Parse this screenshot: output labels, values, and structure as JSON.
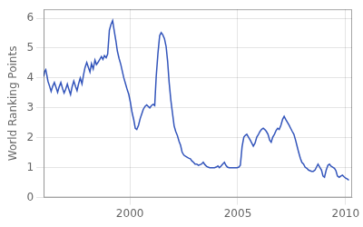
{
  "chart_data": {
    "type": "line",
    "ylabel": "World Ranking Points",
    "color": "#3355bb",
    "xlim": [
      1996.0,
      2010.3
    ],
    "ylim": [
      0,
      6.3
    ],
    "xticks": [
      2000,
      2005,
      2010
    ],
    "yticks": [
      0,
      1,
      2,
      3,
      4,
      5,
      6
    ],
    "grid": true,
    "x": [
      1996.0,
      1996.05,
      1996.1,
      1996.15,
      1996.2,
      1996.28,
      1996.35,
      1996.42,
      1996.5,
      1996.58,
      1996.65,
      1996.72,
      1996.8,
      1996.88,
      1996.95,
      1997.02,
      1997.1,
      1997.18,
      1997.25,
      1997.32,
      1997.4,
      1997.48,
      1997.55,
      1997.62,
      1997.7,
      1997.78,
      1997.85,
      1997.92,
      1998.0,
      1998.08,
      1998.15,
      1998.22,
      1998.3,
      1998.38,
      1998.45,
      1998.52,
      1998.6,
      1998.68,
      1998.75,
      1998.82,
      1998.9,
      1998.97,
      1999.05,
      1999.12,
      1999.2,
      1999.28,
      1999.35,
      1999.42,
      1999.5,
      1999.58,
      1999.65,
      1999.72,
      1999.8,
      1999.88,
      1999.95,
      2000.02,
      2000.1,
      2000.18,
      2000.25,
      2000.32,
      2000.4,
      2000.48,
      2000.55,
      2000.62,
      2000.7,
      2000.78,
      2000.85,
      2000.92,
      2001.0,
      2001.08,
      2001.15,
      2001.22,
      2001.3,
      2001.38,
      2001.45,
      2001.52,
      2001.6,
      2001.68,
      2001.75,
      2001.82,
      2001.9,
      2001.97,
      2002.05,
      2002.12,
      2002.2,
      2002.28,
      2002.35,
      2002.42,
      2002.5,
      2002.58,
      2002.65,
      2002.72,
      2002.8,
      2002.88,
      2002.95,
      2003.02,
      2003.1,
      2003.18,
      2003.25,
      2003.32,
      2003.4,
      2003.48,
      2003.55,
      2003.62,
      2003.7,
      2003.78,
      2003.85,
      2003.92,
      2004.0,
      2004.08,
      2004.15,
      2004.22,
      2004.3,
      2004.38,
      2004.45,
      2004.52,
      2004.6,
      2004.68,
      2004.75,
      2004.82,
      2004.9,
      2004.97,
      2005.05,
      2005.12,
      2005.2,
      2005.28,
      2005.35,
      2005.42,
      2005.5,
      2005.58,
      2005.65,
      2005.72,
      2005.8,
      2005.88,
      2005.95,
      2006.02,
      2006.1,
      2006.18,
      2006.25,
      2006.32,
      2006.4,
      2006.48,
      2006.55,
      2006.62,
      2006.7,
      2006.78,
      2006.85,
      2006.92,
      2007.0,
      2007.08,
      2007.15,
      2007.22,
      2007.3,
      2007.38,
      2007.45,
      2007.52,
      2007.6,
      2007.68,
      2007.75,
      2007.82,
      2007.9,
      2007.97,
      2008.05,
      2008.12,
      2008.2,
      2008.28,
      2008.35,
      2008.42,
      2008.5,
      2008.58,
      2008.65,
      2008.72,
      2008.8,
      2008.88,
      2008.95,
      2009.02,
      2009.1,
      2009.18,
      2009.25,
      2009.32,
      2009.4,
      2009.48,
      2009.55,
      2009.62,
      2009.7,
      2009.78,
      2009.85,
      2009.92,
      2010.0,
      2010.08,
      2010.15
    ],
    "values": [
      4.05,
      4.22,
      4.28,
      4.1,
      3.9,
      3.72,
      3.55,
      3.72,
      3.85,
      3.68,
      3.52,
      3.7,
      3.85,
      3.65,
      3.5,
      3.62,
      3.8,
      3.6,
      3.45,
      3.7,
      3.9,
      3.72,
      3.58,
      3.8,
      4.0,
      3.8,
      4.1,
      4.35,
      4.52,
      4.35,
      4.2,
      4.48,
      4.3,
      4.6,
      4.45,
      4.52,
      4.62,
      4.72,
      4.62,
      4.75,
      4.68,
      4.8,
      5.6,
      5.78,
      5.92,
      5.55,
      5.25,
      4.9,
      4.65,
      4.45,
      4.22,
      4.0,
      3.8,
      3.6,
      3.45,
      3.2,
      2.85,
      2.6,
      2.32,
      2.28,
      2.42,
      2.65,
      2.8,
      2.95,
      3.05,
      3.1,
      3.05,
      3.0,
      3.08,
      3.12,
      3.08,
      4.05,
      4.82,
      5.42,
      5.52,
      5.45,
      5.32,
      5.05,
      4.55,
      3.85,
      3.25,
      2.85,
      2.4,
      2.22,
      2.08,
      1.88,
      1.75,
      1.52,
      1.42,
      1.38,
      1.35,
      1.32,
      1.3,
      1.22,
      1.18,
      1.12,
      1.12,
      1.08,
      1.1,
      1.12,
      1.18,
      1.1,
      1.05,
      1.02,
      1.0,
      1.0,
      1.0,
      1.0,
      1.02,
      1.06,
      1.0,
      1.05,
      1.12,
      1.18,
      1.08,
      1.02,
      1.0,
      1.0,
      1.0,
      1.0,
      1.0,
      1.0,
      1.02,
      1.08,
      1.7,
      2.02,
      2.08,
      2.12,
      2.02,
      1.92,
      1.82,
      1.72,
      1.82,
      2.02,
      2.1,
      2.2,
      2.28,
      2.32,
      2.28,
      2.22,
      2.12,
      1.92,
      1.85,
      2.02,
      2.12,
      2.25,
      2.32,
      2.28,
      2.42,
      2.62,
      2.72,
      2.62,
      2.52,
      2.42,
      2.32,
      2.22,
      2.12,
      1.92,
      1.72,
      1.52,
      1.32,
      1.18,
      1.12,
      1.02,
      0.98,
      0.92,
      0.9,
      0.88,
      0.88,
      0.92,
      1.02,
      1.12,
      1.02,
      0.92,
      0.72,
      0.68,
      0.92,
      1.08,
      1.12,
      1.05,
      1.02,
      0.98,
      0.9,
      0.72,
      0.68,
      0.72,
      0.75,
      0.7,
      0.65,
      0.62,
      0.58
    ]
  }
}
